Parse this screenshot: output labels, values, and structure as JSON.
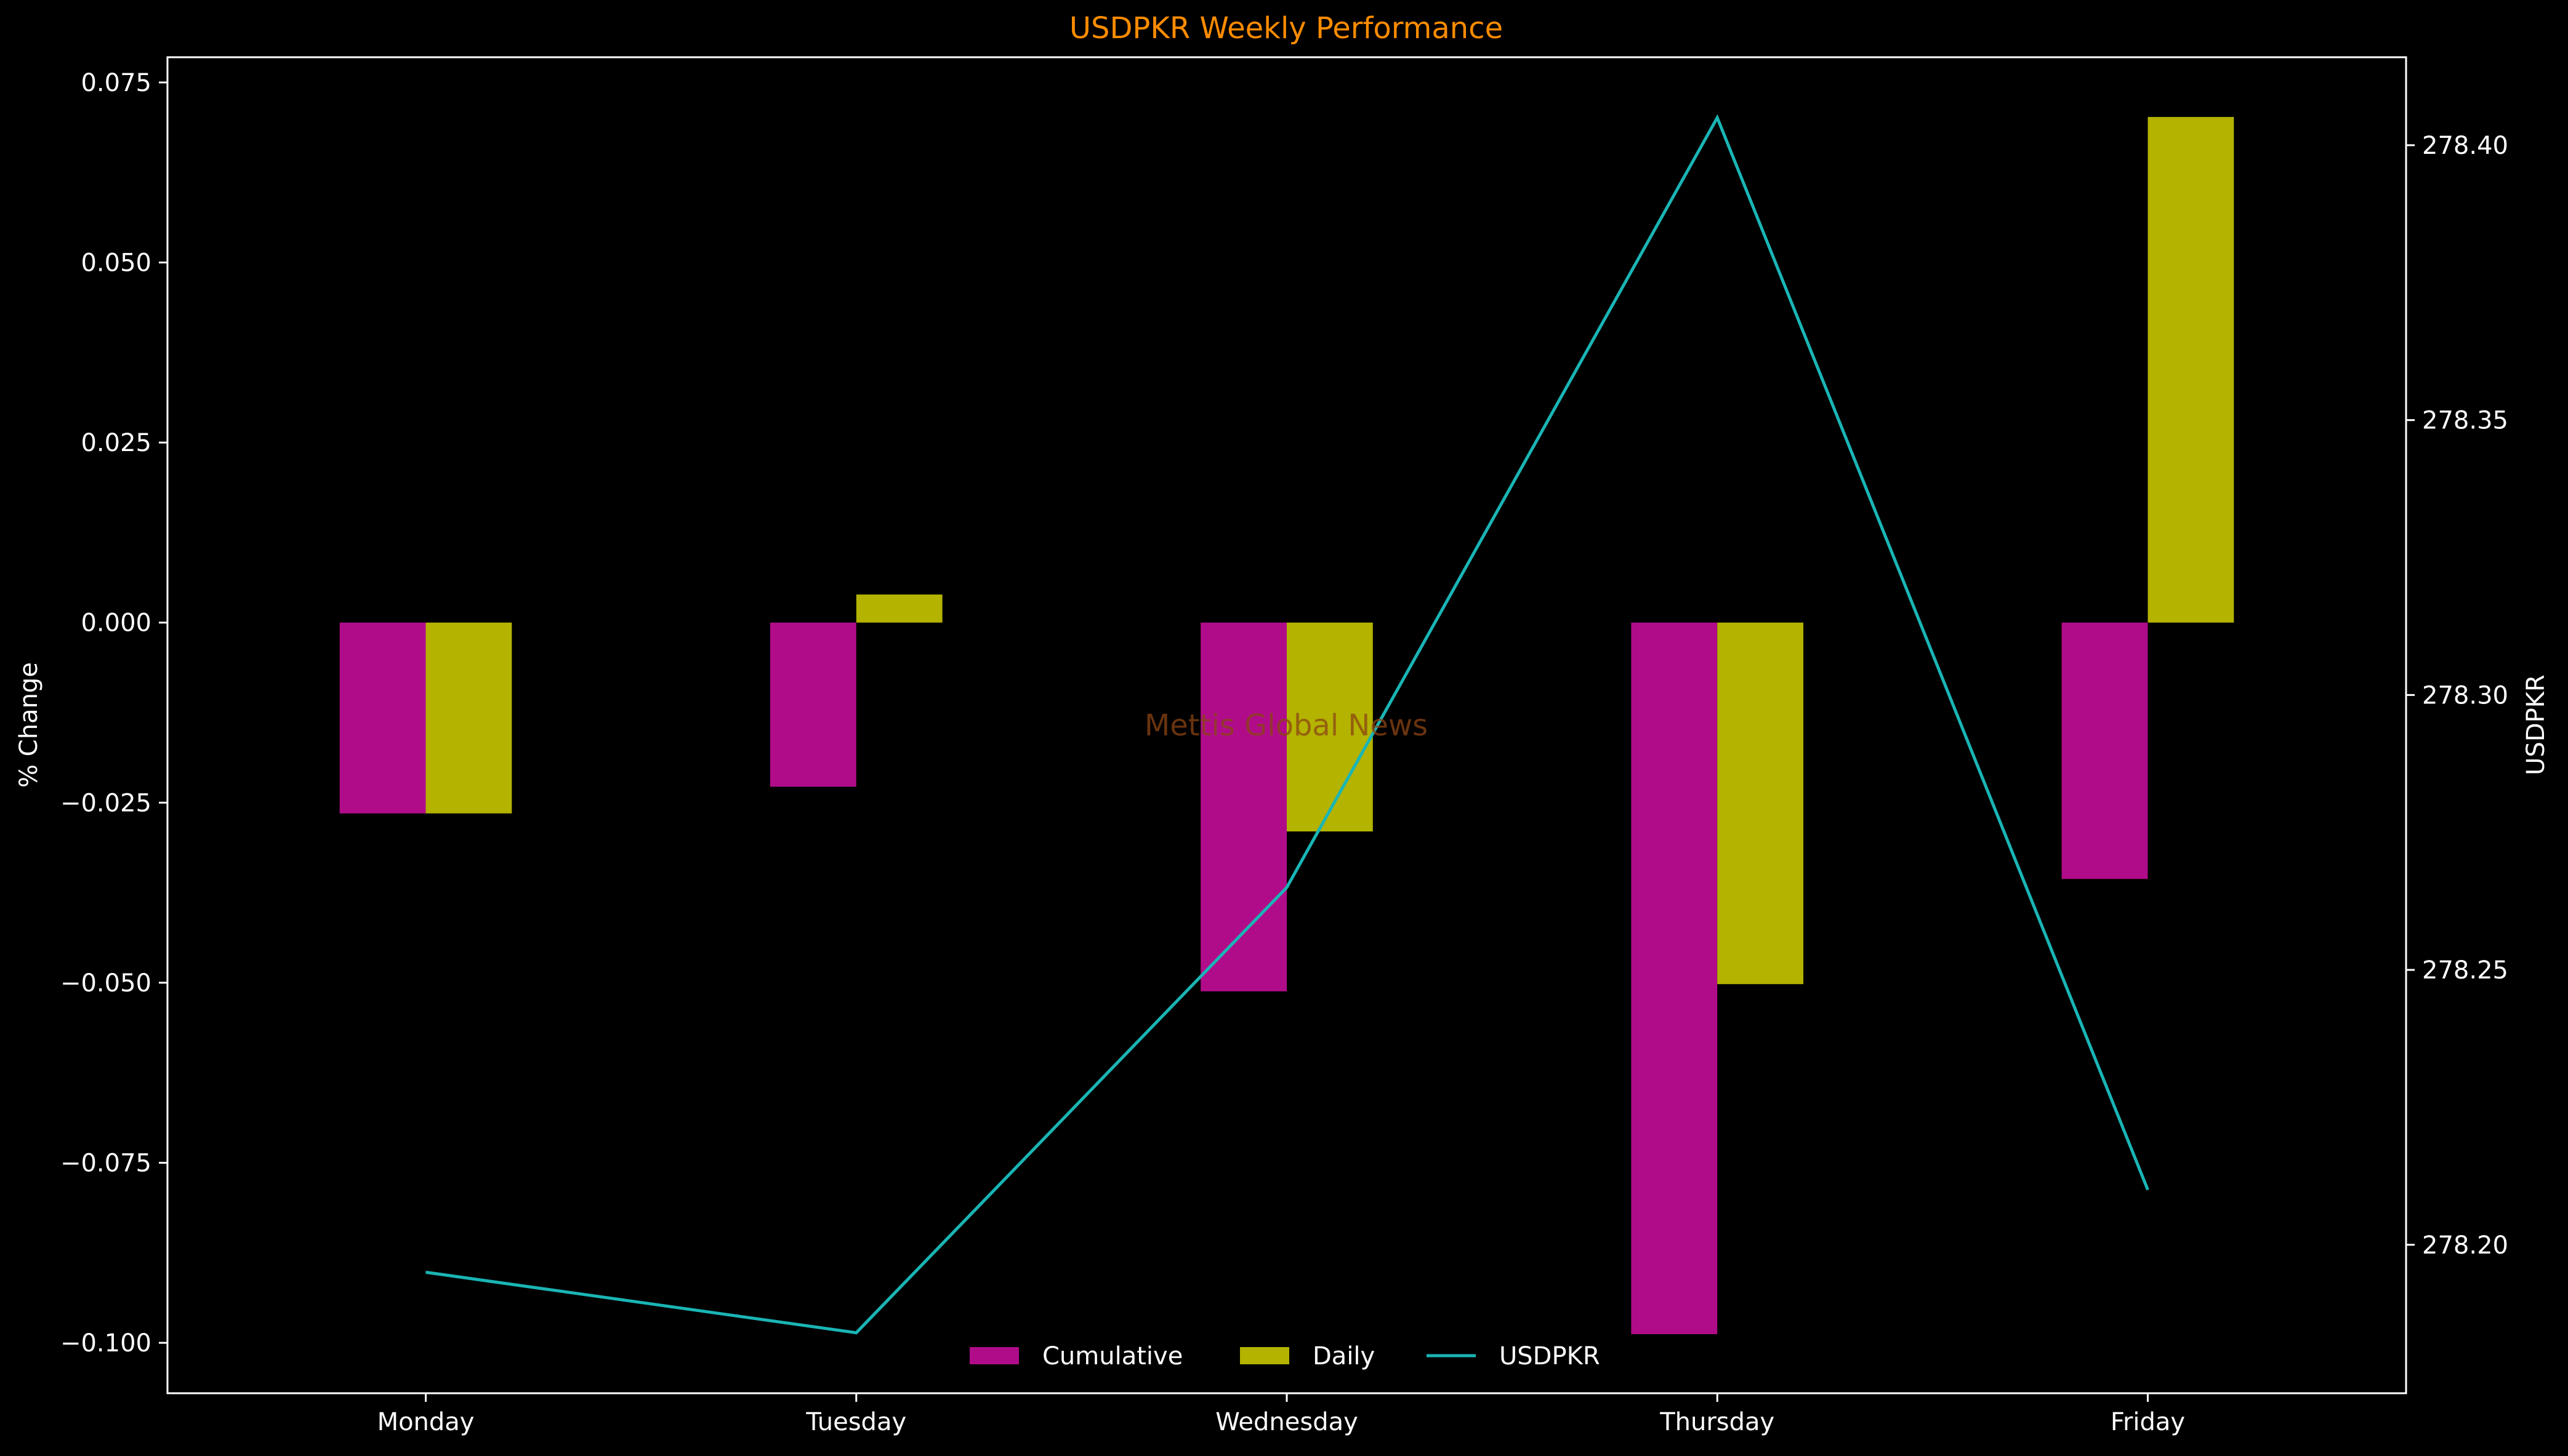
{
  "colors": {
    "background": "#000000",
    "axes": "#ffffff",
    "title": "#ff8c00",
    "cumulative": "#b00c8a",
    "daily": "#b3b300",
    "line": "#1ab5b5",
    "watermark": "#8b4513"
  },
  "watermark": "Mettis Global News",
  "chart_data": {
    "type": "bar",
    "title": "USDPKR Weekly Performance",
    "xlabel": "",
    "ylabel": "% Change",
    "y2label": "USDPKR",
    "categories": [
      "Monday",
      "Tuesday",
      "Wednesday",
      "Thursday",
      "Friday"
    ],
    "series": [
      {
        "name": "Cumulative",
        "type": "bar",
        "axis": "left",
        "values": [
          -0.0265,
          -0.0228,
          -0.0512,
          -0.0988,
          -0.0356
        ]
      },
      {
        "name": "Daily",
        "type": "bar",
        "axis": "left",
        "values": [
          -0.0265,
          0.0039,
          -0.029,
          -0.0502,
          0.0702
        ]
      },
      {
        "name": "USDPKR",
        "type": "line",
        "axis": "right",
        "values": [
          278.195,
          278.184,
          278.265,
          278.405,
          278.21
        ]
      }
    ],
    "ylim": [
      -0.107,
      0.0785
    ],
    "y2lim": [
      278.173,
      278.416
    ],
    "yticks": [
      0.075,
      0.05,
      0.025,
      0.0,
      -0.025,
      -0.05,
      -0.075,
      -0.1
    ],
    "ytick_labels": [
      "0.075",
      "0.050",
      "0.025",
      "0.000",
      "−0.025",
      "−0.050",
      "−0.075",
      "−0.100"
    ],
    "y2ticks": [
      278.4,
      278.35,
      278.3,
      278.25,
      278.2
    ],
    "y2tick_labels": [
      "278.40",
      "278.35",
      "278.30",
      "278.25",
      "278.20"
    ],
    "legend": {
      "placement": "lower center",
      "entries": [
        "Cumulative",
        "Daily",
        "USDPKR"
      ]
    },
    "grid": false
  }
}
